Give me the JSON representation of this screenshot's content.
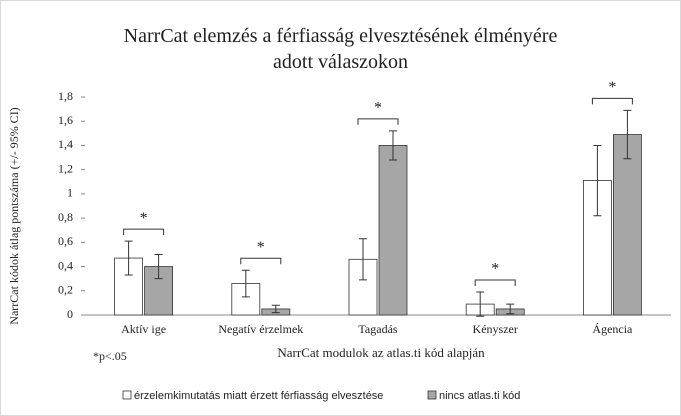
{
  "chart_data": {
    "type": "bar",
    "title": "NarrCat elemzés a férfiasság elvesztésének élményére adott válaszokon",
    "x_label": "NarrCat modulok az atlas.ti kód alapján",
    "y_label": "NarrCat kódok átlag pontszáma (+/- 95% CI)",
    "note": "*p<.05",
    "categories": [
      "Aktív ige",
      "Negatív érzelmek",
      "Tagadás",
      "Kényszer",
      "Ágencia"
    ],
    "series": [
      {
        "name": "érzelemkimutatás miatt érzett férfiasság elvesztése",
        "color": "#ffffff",
        "values": [
          0.47,
          0.26,
          0.46,
          0.09,
          1.11
        ],
        "errors": [
          0.14,
          0.11,
          0.17,
          0.1,
          0.29
        ]
      },
      {
        "name": "nincs atlas.ti kód",
        "color": "#a6a6a6",
        "values": [
          0.4,
          0.05,
          1.4,
          0.05,
          1.49
        ],
        "errors": [
          0.1,
          0.03,
          0.12,
          0.04,
          0.2
        ]
      }
    ],
    "significance": [
      "*",
      "*",
      "*",
      "*",
      "*"
    ],
    "ylim": [
      0,
      1.8
    ],
    "yticks": [
      0,
      {
        "value": 0.2,
        "label": "0,2"
      },
      {
        "value": 0.4,
        "label": "0,4"
      },
      {
        "value": 0.6,
        "label": "0,6"
      },
      {
        "value": 0.8,
        "label": "0,8"
      },
      1,
      {
        "value": 1.2,
        "label": "1,2"
      },
      {
        "value": 1.4,
        "label": "1,4"
      },
      {
        "value": 1.6,
        "label": "1,6"
      },
      {
        "value": 1.8,
        "label": "1,8"
      }
    ],
    "grid": false,
    "legend": "bottom"
  }
}
